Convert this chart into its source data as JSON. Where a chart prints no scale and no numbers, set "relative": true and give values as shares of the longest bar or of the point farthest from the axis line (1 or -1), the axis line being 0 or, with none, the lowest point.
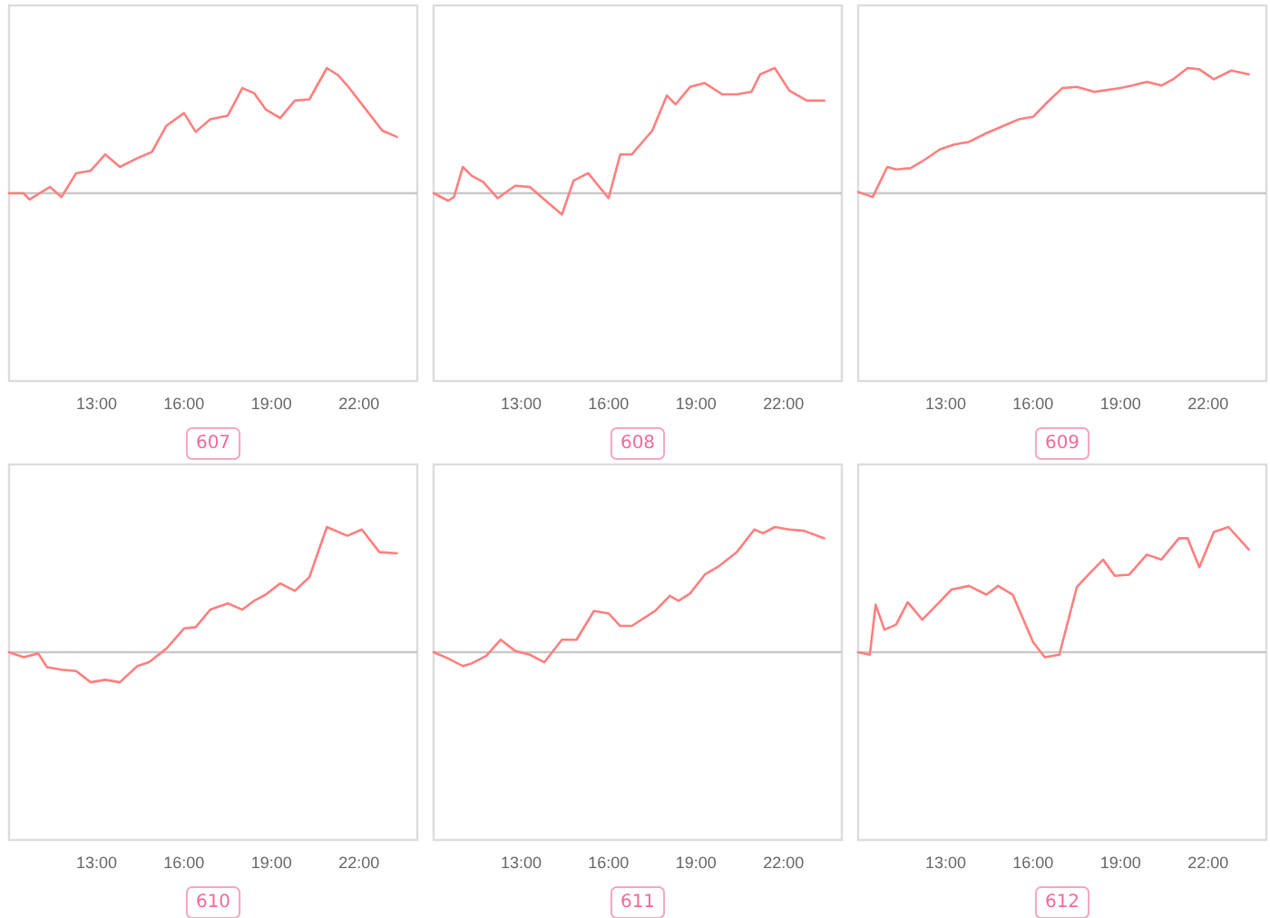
{
  "chart_data": [
    {
      "type": "line",
      "title": "607",
      "relative": true,
      "xlim": [
        10,
        24
      ],
      "xticks": [
        {
          "value": 13,
          "label": "13:00"
        },
        {
          "value": 16,
          "label": "16:00"
        },
        {
          "value": 19,
          "label": "19:00"
        },
        {
          "value": 22,
          "label": "22:00"
        }
      ],
      "series": [
        {
          "color": "#ff7f7f",
          "x": [
            10.0,
            10.5,
            10.7,
            11.4,
            11.8,
            12.3,
            12.8,
            13.3,
            13.8,
            14.4,
            14.9,
            15.4,
            16.0,
            16.4,
            16.9,
            17.5,
            18.0,
            18.4,
            18.8,
            19.3,
            19.8,
            20.3,
            20.9,
            21.3,
            21.6,
            22.2,
            22.8,
            23.3
          ],
          "values": [
            0,
            0,
            -0.05,
            0.05,
            -0.03,
            0.16,
            0.18,
            0.31,
            0.21,
            0.28,
            0.33,
            0.54,
            0.64,
            0.49,
            0.59,
            0.62,
            0.84,
            0.8,
            0.67,
            0.6,
            0.74,
            0.75,
            1,
            0.94,
            0.86,
            0.68,
            0.5,
            0.45
          ]
        }
      ]
    },
    {
      "type": "line",
      "title": "608",
      "relative": true,
      "xlim": [
        10,
        24
      ],
      "xticks": [
        {
          "value": 13,
          "label": "13:00"
        },
        {
          "value": 16,
          "label": "16:00"
        },
        {
          "value": 19,
          "label": "19:00"
        },
        {
          "value": 22,
          "label": "22:00"
        }
      ],
      "series": [
        {
          "color": "#ff7f7f",
          "x": [
            10.0,
            10.5,
            10.7,
            11.0,
            11.3,
            11.7,
            12.2,
            12.8,
            13.3,
            13.8,
            14.4,
            14.8,
            15.3,
            16.0,
            16.4,
            16.8,
            17.5,
            18.0,
            18.3,
            18.8,
            19.3,
            19.9,
            20.4,
            20.9,
            21.2,
            21.7,
            22.2,
            22.8,
            23.4
          ],
          "values": [
            0,
            -0.06,
            -0.03,
            0.21,
            0.14,
            0.09,
            -0.04,
            0.06,
            0.05,
            -0.05,
            -0.17,
            0.1,
            0.16,
            -0.04,
            0.31,
            0.31,
            0.5,
            0.78,
            0.71,
            0.85,
            0.88,
            0.79,
            0.79,
            0.81,
            0.95,
            1,
            0.82,
            0.74,
            0.74
          ]
        }
      ]
    },
    {
      "type": "line",
      "title": "609",
      "relative": true,
      "xlim": [
        10,
        24
      ],
      "xticks": [
        {
          "value": 13,
          "label": "13:00"
        },
        {
          "value": 16,
          "label": "16:00"
        },
        {
          "value": 19,
          "label": "19:00"
        },
        {
          "value": 22,
          "label": "22:00"
        }
      ],
      "series": [
        {
          "color": "#ff7f7f",
          "x": [
            10.0,
            10.5,
            11.0,
            11.3,
            11.8,
            12.3,
            12.8,
            13.3,
            13.8,
            14.4,
            15.0,
            15.5,
            16.0,
            16.5,
            17.0,
            17.5,
            18.1,
            18.4,
            19.0,
            19.4,
            19.9,
            20.4,
            20.8,
            21.3,
            21.7,
            22.2,
            22.8,
            23.4
          ],
          "values": [
            0.01,
            -0.03,
            0.21,
            0.19,
            0.2,
            0.27,
            0.35,
            0.39,
            0.41,
            0.48,
            0.54,
            0.59,
            0.61,
            0.73,
            0.84,
            0.85,
            0.81,
            0.82,
            0.84,
            0.86,
            0.89,
            0.86,
            0.91,
            1,
            0.99,
            0.91,
            0.98,
            0.95
          ]
        }
      ]
    },
    {
      "type": "line",
      "title": "610",
      "relative": true,
      "xlim": [
        10,
        24
      ],
      "xticks": [
        {
          "value": 13,
          "label": "13:00"
        },
        {
          "value": 16,
          "label": "16:00"
        },
        {
          "value": 19,
          "label": "19:00"
        },
        {
          "value": 22,
          "label": "22:00"
        }
      ],
      "series": [
        {
          "color": "#ff7f7f",
          "x": [
            10.0,
            10.5,
            11.0,
            11.3,
            11.8,
            12.3,
            12.8,
            13.3,
            13.8,
            14.4,
            14.8,
            15.4,
            16.0,
            16.4,
            16.9,
            17.5,
            18.0,
            18.4,
            18.8,
            19.3,
            19.8,
            20.3,
            20.9,
            21.6,
            22.1,
            22.7,
            23.3
          ],
          "values": [
            0,
            -0.04,
            -0.01,
            -0.12,
            -0.14,
            -0.15,
            -0.24,
            -0.22,
            -0.24,
            -0.11,
            -0.08,
            0.03,
            0.19,
            0.2,
            0.34,
            0.39,
            0.34,
            0.41,
            0.46,
            0.55,
            0.49,
            0.6,
            1,
            0.93,
            0.98,
            0.8,
            0.79
          ]
        }
      ]
    },
    {
      "type": "line",
      "title": "611",
      "relative": true,
      "xlim": [
        10,
        24
      ],
      "xticks": [
        {
          "value": 13,
          "label": "13:00"
        },
        {
          "value": 16,
          "label": "16:00"
        },
        {
          "value": 19,
          "label": "19:00"
        },
        {
          "value": 22,
          "label": "22:00"
        }
      ],
      "series": [
        {
          "color": "#ff7f7f",
          "x": [
            10.0,
            10.5,
            11.0,
            11.3,
            11.8,
            12.3,
            12.8,
            13.3,
            13.8,
            14.4,
            14.9,
            15.5,
            16.0,
            16.4,
            16.8,
            17.6,
            18.1,
            18.4,
            18.8,
            19.3,
            19.8,
            20.4,
            21.0,
            21.3,
            21.7,
            22.2,
            22.7,
            23.4
          ],
          "values": [
            0,
            -0.05,
            -0.11,
            -0.09,
            -0.03,
            0.1,
            0.01,
            -0.02,
            -0.08,
            0.1,
            0.1,
            0.33,
            0.31,
            0.21,
            0.21,
            0.33,
            0.45,
            0.41,
            0.47,
            0.62,
            0.69,
            0.8,
            0.98,
            0.95,
            1,
            0.98,
            0.97,
            0.91
          ]
        }
      ]
    },
    {
      "type": "line",
      "title": "612",
      "relative": true,
      "xlim": [
        10,
        24
      ],
      "xticks": [
        {
          "value": 13,
          "label": "13:00"
        },
        {
          "value": 16,
          "label": "16:00"
        },
        {
          "value": 19,
          "label": "19:00"
        },
        {
          "value": 22,
          "label": "22:00"
        }
      ],
      "series": [
        {
          "color": "#ff7f7f",
          "x": [
            10.0,
            10.4,
            10.6,
            10.9,
            11.3,
            11.7,
            12.2,
            12.7,
            13.2,
            13.8,
            14.4,
            14.8,
            15.3,
            16.0,
            16.4,
            16.9,
            17.5,
            17.9,
            18.4,
            18.8,
            19.3,
            19.9,
            20.4,
            21.0,
            21.3,
            21.7,
            22.2,
            22.7,
            23.4
          ],
          "values": [
            0,
            -0.02,
            0.38,
            0.18,
            0.22,
            0.4,
            0.26,
            0.38,
            0.5,
            0.53,
            0.46,
            0.53,
            0.46,
            0.08,
            -0.04,
            -0.02,
            0.52,
            0.62,
            0.74,
            0.61,
            0.62,
            0.78,
            0.74,
            0.91,
            0.91,
            0.68,
            0.96,
            1,
            0.82
          ]
        }
      ]
    }
  ]
}
